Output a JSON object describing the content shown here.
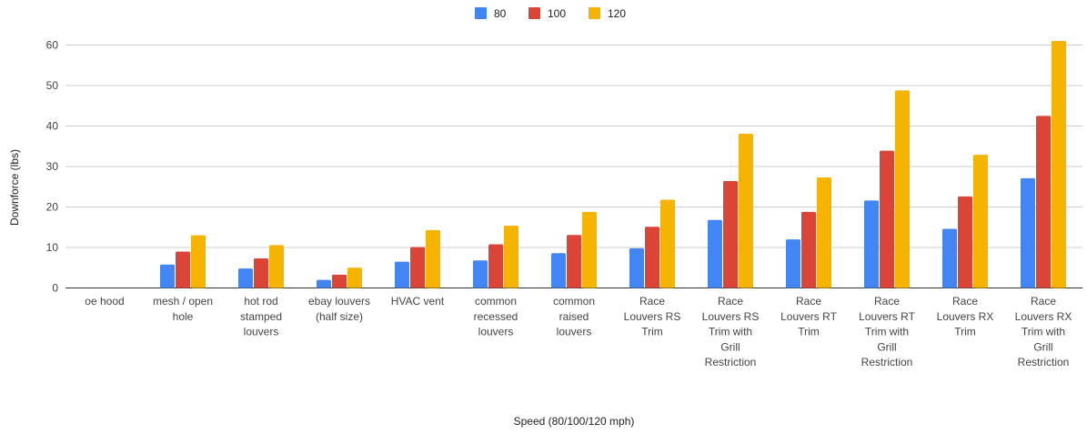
{
  "chart_data": {
    "type": "bar",
    "title": "",
    "xlabel": "Speed (80/100/120 mph)",
    "ylabel": "Downforce (lbs)",
    "ylim": [
      0,
      60
    ],
    "yticks": [
      0,
      10,
      20,
      30,
      40,
      50,
      60
    ],
    "grid": true,
    "legend_position": "top",
    "categories": [
      [
        "oe hood"
      ],
      [
        "mesh / open",
        "hole"
      ],
      [
        "hot rod",
        "stamped",
        "louvers"
      ],
      [
        "ebay louvers",
        "(half size)"
      ],
      [
        "HVAC vent"
      ],
      [
        "common",
        "recessed",
        "louvers"
      ],
      [
        "common",
        "raised",
        "louvers"
      ],
      [
        "Race",
        "Louvers RS",
        "Trim"
      ],
      [
        "Race",
        "Louvers RS",
        "Trim with",
        "Grill",
        "Restriction"
      ],
      [
        "Race",
        "Louvers RT",
        "Trim"
      ],
      [
        "Race",
        "Louvers RT",
        "Trim with",
        "Grill",
        "Restriction"
      ],
      [
        "Race",
        "Louvers RX",
        "Trim"
      ],
      [
        "Race",
        "Louvers RX",
        "Trim with",
        "Grill",
        "Restriction"
      ]
    ],
    "series": [
      {
        "name": "80",
        "color": "#4285f4",
        "values": [
          0,
          5.8,
          4.8,
          2,
          6.5,
          6.8,
          8.6,
          9.8,
          16.8,
          12,
          21.6,
          14.6,
          27.1
        ]
      },
      {
        "name": "100",
        "color": "#db4437",
        "values": [
          0,
          9,
          7.3,
          3.3,
          10.1,
          10.8,
          13.1,
          15.1,
          26.4,
          18.8,
          33.9,
          22.6,
          42.5
        ]
      },
      {
        "name": "120",
        "color": "#f4b400",
        "values": [
          0,
          13,
          10.6,
          5,
          14.3,
          15.4,
          18.8,
          21.8,
          38.1,
          27.3,
          48.8,
          32.9,
          61
        ]
      }
    ]
  }
}
